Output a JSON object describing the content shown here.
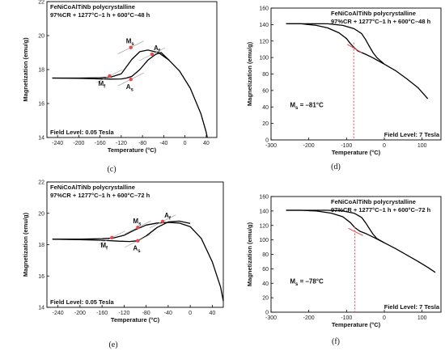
{
  "chart_data": [
    {
      "id": "c",
      "type": "line",
      "caption": "(c)",
      "title_lines": [
        "FeNiCoAlTiNb polycrystalline",
        "97%CR + 1277°C–1 h + 600°C–48 h"
      ],
      "xlabel": "Temperature (°C)",
      "ylabel": "Magnetization (emu/g)",
      "xlim": [
        -260,
        60
      ],
      "ylim": [
        14,
        22
      ],
      "xticks": [
        -240,
        -200,
        -160,
        -120,
        -80,
        -40,
        0,
        40
      ],
      "yticks": [
        14,
        16,
        18,
        20,
        22
      ],
      "footer_left": "Field Level: 0.05 Tesla",
      "footer_right": "",
      "series": [
        {
          "x": [
            -250,
            -200,
            -160,
            -140,
            -120,
            -100,
            -85,
            -70,
            -50,
            -30,
            -10,
            10,
            30,
            40,
            42
          ],
          "y": [
            17.5,
            17.5,
            17.52,
            17.55,
            17.75,
            18.6,
            19.05,
            19.15,
            19.0,
            18.55,
            17.9,
            16.9,
            15.4,
            14.3,
            14.0
          ]
        },
        {
          "x": [
            -250,
            -200,
            -160,
            -140,
            -120,
            -110,
            -100,
            -85,
            -70,
            -55,
            -45,
            -30
          ],
          "y": [
            17.5,
            17.48,
            17.45,
            17.44,
            17.45,
            17.5,
            17.6,
            18.0,
            18.55,
            18.9,
            19.0,
            18.55
          ]
        }
      ],
      "points": [
        {
          "label": "M",
          "sub": "s",
          "x": -102,
          "y": 19.3
        },
        {
          "label": "M",
          "sub": "f",
          "x": -142,
          "y": 17.62
        },
        {
          "label": "A",
          "sub": "s",
          "x": -102,
          "y": 17.42
        },
        {
          "label": "A",
          "sub": "f",
          "x": -62,
          "y": 18.9
        }
      ]
    },
    {
      "id": "d",
      "type": "line",
      "caption": "(d)",
      "title_lines": [
        "FeNiCoAlTiNb polycrystalline",
        "97%CR + 1277°C–1 h + 600°C–48 h"
      ],
      "xlabel": "Temperature (°C)",
      "ylabel": "Magnetization (emu/g)",
      "xlim": [
        -300,
        150
      ],
      "ylim": [
        0,
        160
      ],
      "xticks": [
        -300,
        -200,
        -100,
        0,
        100
      ],
      "yticks": [
        0,
        20,
        40,
        60,
        80,
        100,
        120,
        140,
        160
      ],
      "footer_left": "",
      "footer_right": "Field Level: 7 Tesla",
      "annotation": {
        "text": "M",
        "sub": "s",
        "value": " = –81°C"
      },
      "ms_line_x": -81,
      "series": [
        {
          "x": [
            -260,
            -220,
            -180,
            -150,
            -120,
            -100,
            -90,
            -80,
            -70,
            -60,
            -50,
            -30,
            0,
            30,
            60,
            90,
            115
          ],
          "y": [
            141,
            141,
            139,
            136,
            130,
            123,
            117,
            112,
            108,
            106,
            104,
            99.5,
            92,
            84,
            74,
            63,
            50
          ]
        },
        {
          "x": [
            -260,
            -200,
            -150,
            -110,
            -80,
            -60,
            -50,
            -40,
            -30,
            -20,
            -10,
            0
          ],
          "y": [
            141,
            141,
            141,
            139,
            135,
            129,
            122,
            114,
            106,
            100,
            96,
            92
          ]
        }
      ]
    },
    {
      "id": "e",
      "type": "line",
      "caption": "(e)",
      "title_lines": [
        "FeNiCoAlTiNb polycrystalline",
        "97%CR + 1277°C–1 h + 600°C–72 h"
      ],
      "xlabel": "Temperature (°C)",
      "ylabel": "Magnetization (emu/g)",
      "xlim": [
        -260,
        60
      ],
      "ylim": [
        14,
        22
      ],
      "xticks": [
        -240,
        -200,
        -160,
        -120,
        -80,
        -40,
        0,
        40
      ],
      "yticks": [
        14,
        16,
        18,
        20,
        22
      ],
      "footer_left": "Field Level: 0.05 Tesla",
      "footer_right": "",
      "series": [
        {
          "x": [
            -250,
            -200,
            -160,
            -140,
            -120,
            -100,
            -80,
            -60,
            -40,
            -20,
            0,
            20,
            40,
            55,
            60
          ],
          "y": [
            18.35,
            18.35,
            18.38,
            18.42,
            18.6,
            18.95,
            19.25,
            19.38,
            19.42,
            19.38,
            19.15,
            18.4,
            16.9,
            15.3,
            14.4
          ]
        },
        {
          "x": [
            -250,
            -200,
            -160,
            -130,
            -110,
            -95,
            -80,
            -60,
            -40,
            -20,
            0
          ],
          "y": [
            18.35,
            18.32,
            18.28,
            18.22,
            18.2,
            18.25,
            18.55,
            19.1,
            19.45,
            19.5,
            19.35
          ]
        }
      ],
      "points": [
        {
          "label": "M",
          "sub": "s",
          "x": -95,
          "y": 19.1
        },
        {
          "label": "M",
          "sub": "f",
          "x": -142,
          "y": 18.45
        },
        {
          "label": "A",
          "sub": "s",
          "x": -95,
          "y": 18.25
        },
        {
          "label": "A",
          "sub": "f",
          "x": -50,
          "y": 19.48
        }
      ]
    },
    {
      "id": "f",
      "type": "line",
      "caption": "(f)",
      "title_lines": [
        "FeNiCoAlTiNb polycrystalline",
        "97%CR + 1277°C–1 h + 600°C–72 h"
      ],
      "xlabel": "Temperature (°C)",
      "ylabel": "Magnetization (emu/g)",
      "xlim": [
        -300,
        150
      ],
      "ylim": [
        0,
        160
      ],
      "xticks": [
        -300,
        -200,
        -100,
        0,
        100
      ],
      "yticks": [
        0,
        20,
        40,
        60,
        80,
        100,
        120,
        140,
        160
      ],
      "footer_left": "",
      "footer_right": "Field Level: 7 Tesla",
      "annotation": {
        "text": "M",
        "sub": "s",
        "value": " = –78°C"
      },
      "ms_line_x": -78,
      "series": [
        {
          "x": [
            -260,
            -220,
            -180,
            -140,
            -110,
            -90,
            -78,
            -65,
            -50,
            -30,
            0,
            30,
            60,
            90,
            115,
            135
          ],
          "y": [
            141,
            141,
            140,
            137,
            132,
            124,
            117,
            112,
            109,
            104,
            96,
            88,
            79,
            70,
            62,
            55
          ]
        },
        {
          "x": [
            -260,
            -200,
            -150,
            -110,
            -80,
            -60,
            -50,
            -40,
            -30,
            -20,
            -10,
            0
          ],
          "y": [
            141,
            141,
            141,
            140,
            137,
            131,
            124,
            116,
            108,
            102,
            99,
            96
          ]
        }
      ]
    }
  ]
}
